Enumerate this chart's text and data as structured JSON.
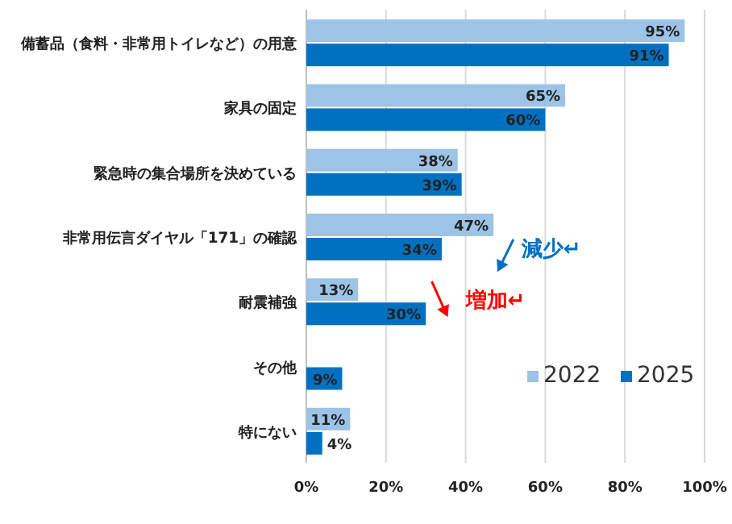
{
  "chart_data": {
    "type": "bar",
    "orientation": "horizontal",
    "categories": [
      "備蓄品（食料・非常用トイレなど）の用意",
      "家具の固定",
      "緊急時の集合場所を決めている",
      "非常用伝言ダイヤル「171」の確認",
      "耐震補強",
      "その他",
      "特にない"
    ],
    "series": [
      {
        "name": "2022",
        "color": "#9dc3e6",
        "values": [
          95,
          65,
          38,
          47,
          13,
          null,
          11
        ],
        "value_labels": [
          "95%",
          "65%",
          "38%",
          "47%",
          "13%",
          null,
          "11%"
        ]
      },
      {
        "name": "2025",
        "color": "#0070c0",
        "values": [
          91,
          60,
          39,
          34,
          30,
          9,
          4
        ],
        "value_labels": [
          "91%",
          "60%",
          "39%",
          "34%",
          "30%",
          "9%",
          "4%"
        ]
      }
    ],
    "xlim": [
      0,
      100
    ],
    "xticks": [
      {
        "value": 0,
        "label": "0%"
      },
      {
        "value": 20,
        "label": "20%"
      },
      {
        "value": 40,
        "label": "40%"
      },
      {
        "value": 60,
        "label": "60%"
      },
      {
        "value": 80,
        "label": "80%"
      },
      {
        "value": 100,
        "label": "100%"
      }
    ],
    "grid": "x",
    "legend": "bottom right",
    "annotations": [
      "減少↵",
      "増加↵"
    ]
  }
}
